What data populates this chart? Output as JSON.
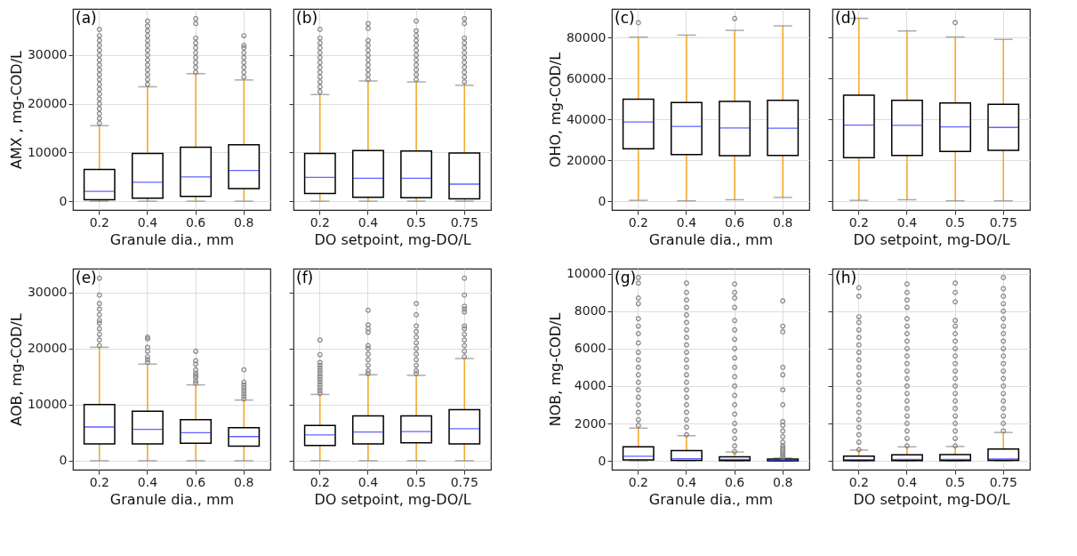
{
  "chart_data": [
    {
      "type": "box",
      "ylabel": "AMX , mg-COD/L",
      "xlabel": "Granule dia., mm",
      "annotations": [
        "(a)"
      ],
      "categories": [
        "0.2",
        "0.4",
        "0.6",
        "0.8"
      ],
      "ylim": [
        -1800,
        39500
      ],
      "yticks": [
        0,
        10000,
        20000,
        30000
      ],
      "grid": true,
      "boxes": [
        {
          "low": 0,
          "q1": 300,
          "median": 2000,
          "q3": 6500,
          "high": 15500,
          "outliers": [
            16000,
            17000,
            18000,
            19000,
            20000,
            21000,
            22000,
            23000,
            24000,
            25000,
            26000,
            27000,
            28000,
            29000,
            30000,
            31000,
            32000,
            33000,
            34000,
            35300
          ]
        },
        {
          "low": 0,
          "q1": 600,
          "median": 3900,
          "q3": 9800,
          "high": 23500,
          "outliers": [
            24000,
            25000,
            26000,
            27000,
            28000,
            29000,
            30000,
            31000,
            32000,
            33000,
            34000,
            35000,
            36000,
            37000
          ]
        },
        {
          "low": 0,
          "q1": 1000,
          "median": 5000,
          "q3": 11100,
          "high": 26200,
          "outliers": [
            26500,
            27500,
            28500,
            29500,
            30500,
            31500,
            32500,
            33500,
            36500,
            37500
          ]
        },
        {
          "low": 0,
          "q1": 2600,
          "median": 6300,
          "q3": 11600,
          "high": 24900,
          "outliers": [
            25500,
            26500,
            27500,
            28500,
            29500,
            30500,
            31500,
            32000,
            34000
          ]
        }
      ]
    },
    {
      "type": "box",
      "xlabel": "DO setpoint, mg-DO/L",
      "annotations": [
        "(b)"
      ],
      "categories": [
        "0.2",
        "0.4",
        "0.5",
        "0.75"
      ],
      "ylim": [
        -1800,
        39500
      ],
      "yticks": [
        0,
        10000,
        20000,
        30000
      ],
      "grid": true,
      "tick_labels": "x",
      "boxes": [
        {
          "low": 0,
          "q1": 1600,
          "median": 4900,
          "q3": 9800,
          "high": 21900,
          "outliers": [
            22500,
            23500,
            24500,
            25500,
            26500,
            27500,
            28500,
            29500,
            30500,
            31500,
            32500,
            33500,
            35300
          ]
        },
        {
          "low": 0,
          "q1": 800,
          "median": 4700,
          "q3": 10400,
          "high": 24700,
          "outliers": [
            25000,
            26000,
            27000,
            28000,
            29000,
            30000,
            31000,
            32000,
            33000,
            35500,
            36500
          ]
        },
        {
          "low": 0,
          "q1": 700,
          "median": 4700,
          "q3": 10300,
          "high": 24500,
          "outliers": [
            25000,
            26000,
            27000,
            28000,
            29000,
            30000,
            31000,
            32000,
            33000,
            34000,
            35000,
            37000
          ]
        },
        {
          "low": 0,
          "q1": 500,
          "median": 3500,
          "q3": 9900,
          "high": 23800,
          "outliers": [
            24500,
            25500,
            26500,
            27500,
            28500,
            29500,
            30500,
            31500,
            32500,
            33500,
            36500,
            37500
          ]
        }
      ]
    },
    {
      "type": "box",
      "ylabel": "OHO, mg-COD/L",
      "xlabel": "Granule dia., mm",
      "annotations": [
        "(c)"
      ],
      "categories": [
        "0.2",
        "0.4",
        "0.6",
        "0.8"
      ],
      "ylim": [
        -4200,
        94000
      ],
      "yticks": [
        0,
        20000,
        40000,
        60000,
        80000
      ],
      "grid": true,
      "boxes": [
        {
          "low": 500,
          "q1": 25700,
          "median": 38800,
          "q3": 49900,
          "high": 80200,
          "outliers": [
            87300
          ]
        },
        {
          "low": 300,
          "q1": 22900,
          "median": 36600,
          "q3": 48300,
          "high": 81200
        },
        {
          "low": 800,
          "q1": 22300,
          "median": 35800,
          "q3": 48800,
          "high": 83500,
          "outliers": [
            89300
          ]
        },
        {
          "low": 1900,
          "q1": 22400,
          "median": 35700,
          "q3": 49300,
          "high": 85700
        }
      ]
    },
    {
      "type": "box",
      "xlabel": "DO setpoint, mg-DO/L",
      "annotations": [
        "(d)"
      ],
      "categories": [
        "0.2",
        "0.4",
        "0.5",
        "0.75"
      ],
      "ylim": [
        -4200,
        94000
      ],
      "yticks": [
        0,
        20000,
        40000,
        60000,
        80000
      ],
      "grid": true,
      "tick_labels": "x",
      "boxes": [
        {
          "low": 500,
          "q1": 21300,
          "median": 37200,
          "q3": 51900,
          "high": 89400
        },
        {
          "low": 800,
          "q1": 22400,
          "median": 37100,
          "q3": 49300,
          "high": 83200
        },
        {
          "low": 300,
          "q1": 24400,
          "median": 36400,
          "q3": 48100,
          "high": 80300,
          "outliers": [
            87300
          ]
        },
        {
          "low": 300,
          "q1": 24900,
          "median": 36100,
          "q3": 47400,
          "high": 79100
        }
      ]
    },
    {
      "type": "box",
      "ylabel": "AOB, mg-COD/L",
      "xlabel": "Granule dia., mm",
      "annotations": [
        "(e)"
      ],
      "categories": [
        "0.2",
        "0.4",
        "0.6",
        "0.8"
      ],
      "ylim": [
        -1600,
        34200
      ],
      "yticks": [
        0,
        10000,
        20000,
        30000
      ],
      "grid": true,
      "boxes": [
        {
          "low": 0,
          "q1": 3000,
          "median": 6000,
          "q3": 10000,
          "high": 20200,
          "outliers": [
            20500,
            21500,
            22500,
            23500,
            24500,
            25000,
            26000,
            27000,
            28000,
            29500,
            32500
          ]
        },
        {
          "low": 0,
          "q1": 3000,
          "median": 5600,
          "q3": 8800,
          "high": 17200,
          "outliers": [
            17500,
            18000,
            18500,
            19500,
            20200,
            21700,
            22000
          ]
        },
        {
          "low": 0,
          "q1": 3100,
          "median": 5000,
          "q3": 7300,
          "high": 13500,
          "outliers": [
            13800,
            14200,
            14800,
            15200,
            15600,
            16200,
            17200,
            17800,
            19500
          ]
        },
        {
          "low": 0,
          "q1": 2600,
          "median": 4300,
          "q3": 5900,
          "high": 10800,
          "outliers": [
            11000,
            11500,
            12000,
            12500,
            13000,
            13500,
            14000,
            16200
          ]
        }
      ]
    },
    {
      "type": "box",
      "xlabel": "DO setpoint, mg-DO/L",
      "annotations": [
        "(f)"
      ],
      "categories": [
        "0.2",
        "0.4",
        "0.5",
        "0.75"
      ],
      "ylim": [
        -1600,
        34200
      ],
      "yticks": [
        0,
        10000,
        20000,
        30000
      ],
      "grid": true,
      "tick_labels": "x",
      "boxes": [
        {
          "low": 0,
          "q1": 2700,
          "median": 4600,
          "q3": 6300,
          "high": 11800,
          "outliers": [
            12000,
            12500,
            13000,
            13500,
            14000,
            14500,
            15000,
            15500,
            16000,
            16500,
            17000,
            17500,
            18900,
            21500
          ]
        },
        {
          "low": 0,
          "q1": 3000,
          "median": 5100,
          "q3": 8000,
          "high": 15300,
          "outliers": [
            15500,
            16000,
            17000,
            18000,
            19000,
            20000,
            20500,
            22900,
            23500,
            24200,
            26800
          ]
        },
        {
          "low": 0,
          "q1": 3200,
          "median": 5200,
          "q3": 8000,
          "high": 15200,
          "outliers": [
            15500,
            16000,
            17000,
            18000,
            19000,
            20000,
            21000,
            22000,
            23000,
            24000,
            26000,
            28000
          ]
        },
        {
          "low": 0,
          "q1": 3000,
          "median": 5700,
          "q3": 9100,
          "high": 18200,
          "outliers": [
            18500,
            19500,
            20500,
            21500,
            22500,
            23500,
            24000,
            26500,
            27000,
            27500,
            29500,
            32500
          ]
        }
      ]
    },
    {
      "type": "box",
      "ylabel": "NOB, mg-COD/L",
      "xlabel": "Granule dia., mm",
      "annotations": [
        "(g)"
      ],
      "categories": [
        "0.2",
        "0.4",
        "0.6",
        "0.8"
      ],
      "ylim": [
        -470,
        10270
      ],
      "yticks": [
        0,
        2000,
        4000,
        6000,
        8000,
        10000
      ],
      "grid": true,
      "boxes": [
        {
          "low": 0,
          "q1": 50,
          "median": 250,
          "q3": 750,
          "high": 1750,
          "outliers": [
            1900,
            2200,
            2600,
            3000,
            3400,
            3800,
            4200,
            4600,
            5000,
            5400,
            5800,
            6300,
            6800,
            7200,
            7600,
            8400,
            8700,
            9500,
            9800
          ]
        },
        {
          "low": 0,
          "q1": 30,
          "median": 120,
          "q3": 550,
          "high": 1350,
          "outliers": [
            1400,
            1800,
            2200,
            2600,
            3000,
            3400,
            3800,
            4200,
            4600,
            5000,
            5400,
            5800,
            6200,
            6600,
            7000,
            7400,
            7800,
            8200,
            8600,
            9000,
            9500
          ]
        },
        {
          "low": 0,
          "q1": 20,
          "median": 80,
          "q3": 220,
          "high": 480,
          "outliers": [
            500,
            800,
            1200,
            1600,
            2000,
            2500,
            3000,
            3500,
            4000,
            4500,
            5000,
            5500,
            6000,
            6500,
            7000,
            7500,
            8200,
            8700,
            9000,
            9450
          ]
        },
        {
          "low": 0,
          "q1": 10,
          "median": 50,
          "q3": 100,
          "high": 150,
          "outliers": [
            200,
            300,
            400,
            500,
            600,
            700,
            800,
            1000,
            1300,
            1600,
            1900,
            2100,
            3000,
            3800,
            4600,
            5000,
            6900,
            7200,
            8550
          ]
        }
      ]
    },
    {
      "type": "box",
      "xlabel": "DO setpoint, mg-DO/L",
      "annotations": [
        "(h)"
      ],
      "categories": [
        "0.2",
        "0.4",
        "0.5",
        "0.75"
      ],
      "ylim": [
        -470,
        10270
      ],
      "yticks": [
        0,
        2000,
        4000,
        6000,
        8000,
        10000
      ],
      "grid": true,
      "tick_labels": "x",
      "boxes": [
        {
          "low": 0,
          "q1": 20,
          "median": 70,
          "q3": 250,
          "high": 580,
          "outliers": [
            600,
            1000,
            1400,
            1800,
            2200,
            2600,
            3000,
            3400,
            3800,
            4200,
            4600,
            5000,
            5400,
            5800,
            6200,
            6600,
            7000,
            7400,
            7700,
            8800,
            9250
          ]
        },
        {
          "low": 0,
          "q1": 20,
          "median": 80,
          "q3": 330,
          "high": 750,
          "outliers": [
            800,
            1200,
            1600,
            2000,
            2400,
            2800,
            3200,
            3600,
            4000,
            4400,
            4800,
            5200,
            5600,
            6000,
            6400,
            6800,
            7200,
            7600,
            8200,
            8600,
            9000,
            9450
          ]
        },
        {
          "low": 0,
          "q1": 20,
          "median": 80,
          "q3": 340,
          "high": 770,
          "outliers": [
            800,
            1200,
            1600,
            2000,
            2400,
            2800,
            3200,
            3600,
            4000,
            4400,
            4800,
            5200,
            5600,
            6000,
            6400,
            6800,
            7200,
            7500,
            8500,
            9000,
            9500
          ]
        },
        {
          "low": 0,
          "q1": 30,
          "median": 100,
          "q3": 640,
          "high": 1520,
          "outliers": [
            1600,
            2000,
            2400,
            2800,
            3200,
            3600,
            4000,
            4400,
            4800,
            5200,
            5600,
            6000,
            6400,
            6800,
            7200,
            7600,
            8000,
            8400,
            8800,
            9200,
            9800
          ]
        }
      ]
    }
  ]
}
